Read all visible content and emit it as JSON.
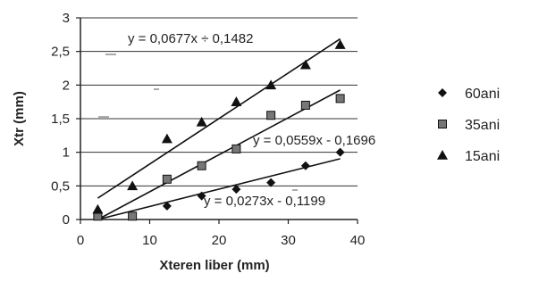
{
  "chart_data": {
    "type": "scatter",
    "title": "",
    "xlabel": "Xteren liber (mm)",
    "ylabel": "Xtr (mm)",
    "xlim": [
      0,
      40
    ],
    "ylim": [
      0,
      3
    ],
    "x_ticks": [
      "0",
      "10",
      "20",
      "30",
      "40"
    ],
    "y_ticks": [
      "0",
      "0,5",
      "1",
      "1,5",
      "2",
      "2,5",
      "3"
    ],
    "grid": "horizontal",
    "legend_position": "right",
    "series": [
      {
        "name": "60ani",
        "marker": "diamond",
        "x": [
          2.5,
          7.5,
          12.5,
          17.5,
          22.5,
          27.5,
          32.5,
          37.5
        ],
        "y": [
          0.05,
          0.05,
          0.2,
          0.35,
          0.45,
          0.55,
          0.8,
          1.0
        ],
        "trendline": {
          "slope": 0.0273,
          "intercept": -0.1199,
          "label": "y = 0,0273x - 0,1199"
        }
      },
      {
        "name": "35ani",
        "marker": "square",
        "x": [
          2.5,
          7.5,
          12.5,
          17.5,
          22.5,
          27.5,
          32.5,
          37.5
        ],
        "y": [
          0.05,
          0.05,
          0.6,
          0.8,
          1.05,
          1.55,
          1.7,
          1.8
        ],
        "trendline": {
          "slope": 0.0559,
          "intercept": -0.1696,
          "label": "y = 0,0559x - 0,1696"
        }
      },
      {
        "name": "15ani",
        "marker": "triangle",
        "x": [
          2.5,
          7.5,
          12.5,
          17.5,
          22.5,
          27.5,
          32.5,
          37.5
        ],
        "y": [
          0.15,
          0.5,
          1.2,
          1.45,
          1.75,
          2.0,
          2.3,
          2.6
        ],
        "trendline": {
          "slope": 0.0677,
          "intercept": 0.1482,
          "label": "y = 0,0677x ÷ 0,1482"
        }
      }
    ]
  }
}
